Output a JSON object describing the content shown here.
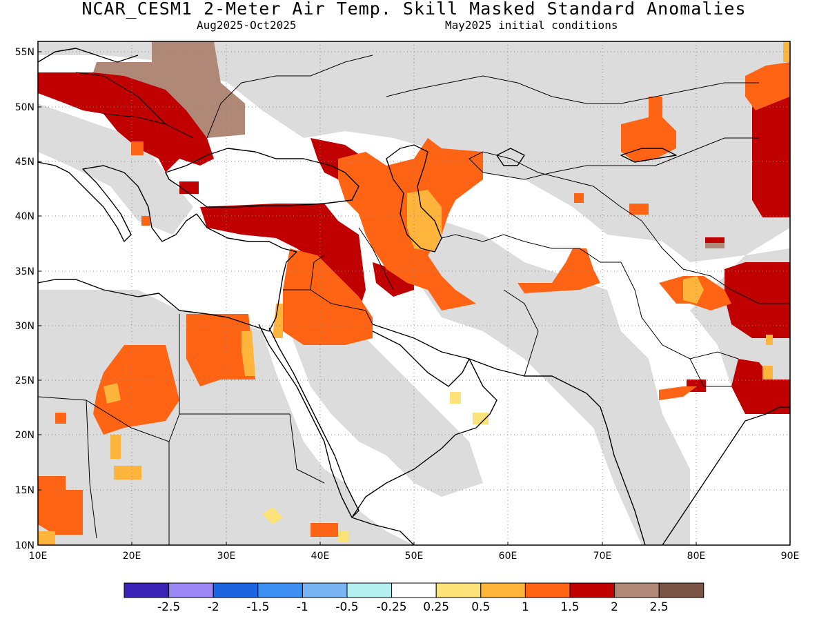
{
  "title": "NCAR_CESM1 2-Meter Air Temp. Skill Masked Standard Anomalies",
  "period": "Aug2025-Oct2025",
  "init": "May2025 initial conditions",
  "lat_labels": [
    "55N",
    "50N",
    "45N",
    "40N",
    "35N",
    "30N",
    "25N",
    "20N",
    "15N",
    "10N"
  ],
  "lon_labels": [
    "10E",
    "20E",
    "30E",
    "40E",
    "50E",
    "60E",
    "70E",
    "80E",
    "90E"
  ],
  "colorbar": {
    "colors": [
      "#3a22b4",
      "#9c88f5",
      "#1d64e0",
      "#3c8ff0",
      "#78b4f2",
      "#b4f0f0",
      "#ffffff",
      "#fde27a",
      "#ffb43c",
      "#ff6414",
      "#c00000",
      "#b08878",
      "#7a5546"
    ],
    "labels": [
      "-2.5",
      "-2",
      "-1.5",
      "-1",
      "-0.5",
      "-0.25",
      "0.25",
      "0.5",
      "1",
      "1.5",
      "2",
      "2.5"
    ]
  },
  "colors": {
    "masked": "#dcdcdc",
    "gt2": "#c00000",
    "gt2_5": "#b08878",
    "gt1_5": "#ff6414",
    "gt1": "#ffb43c",
    "gt0_5": "#fde27a"
  }
}
